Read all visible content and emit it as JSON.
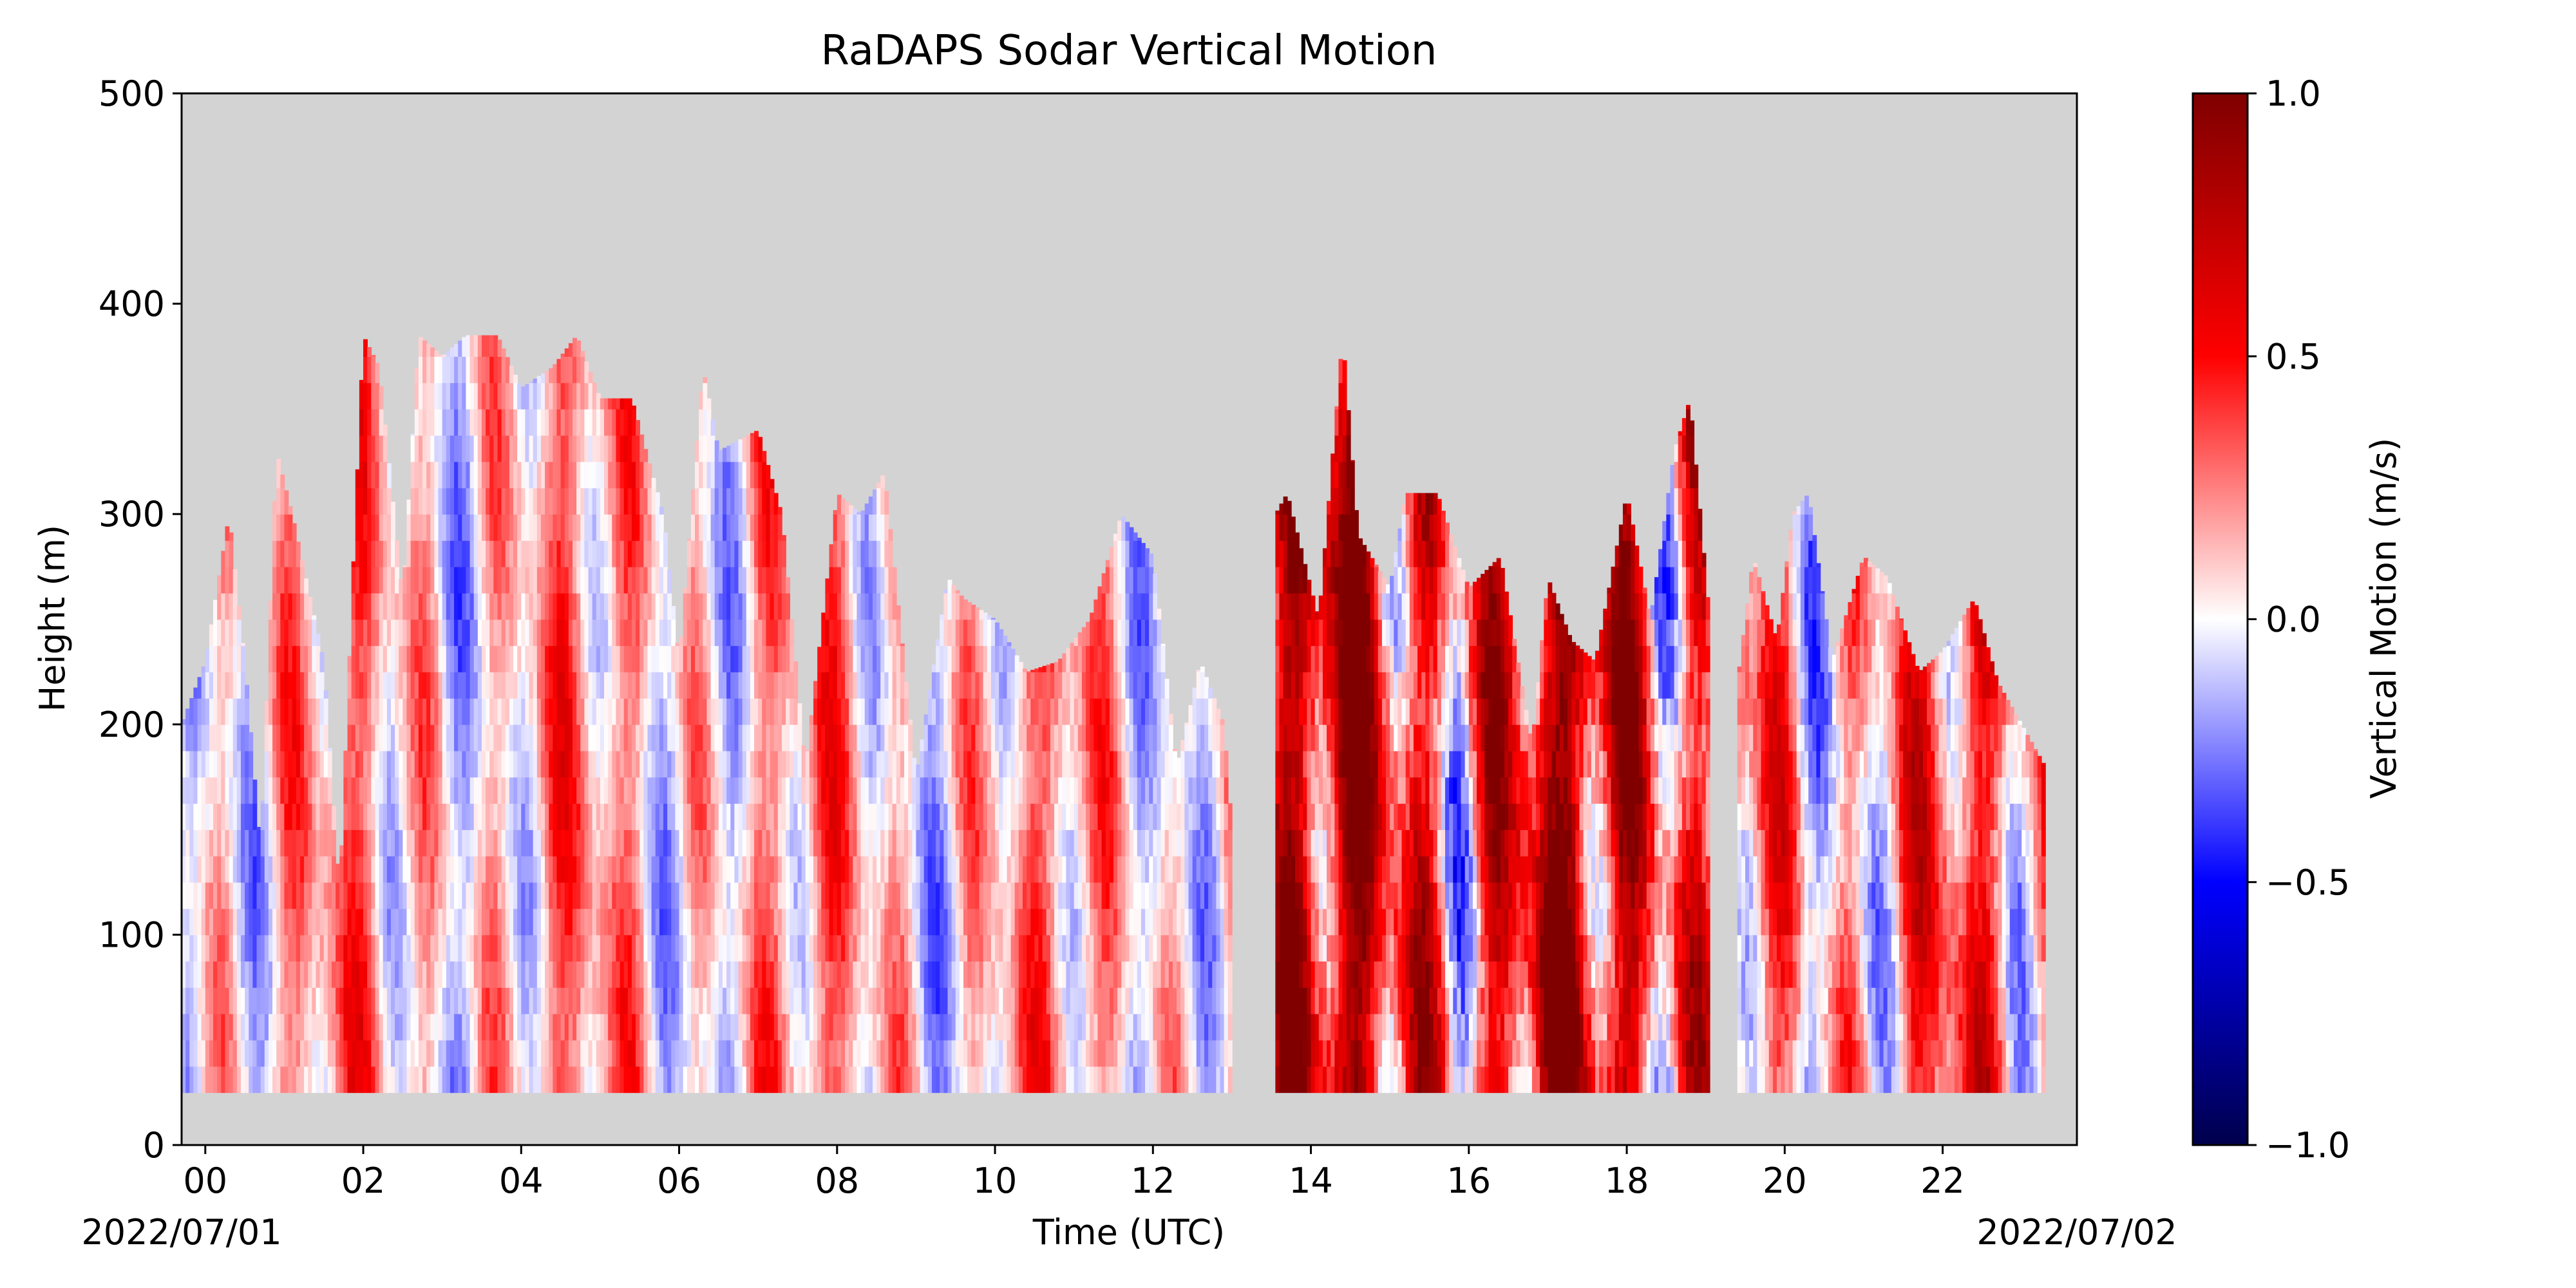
{
  "chart_data": {
    "type": "heatmap",
    "title": "RaDAPS Sodar Vertical Motion",
    "xlabel": "Time (UTC)",
    "ylabel": "Height (m)",
    "date_start": "2022/07/01",
    "date_end": "2022/07/02",
    "x_unit": "hour UTC",
    "xlim": [
      -0.3,
      23.7
    ],
    "ylim": [
      0,
      500
    ],
    "x_ticks": [
      "00",
      "02",
      "04",
      "06",
      "08",
      "10",
      "12",
      "14",
      "16",
      "18",
      "20",
      "22"
    ],
    "x_tick_values": [
      0,
      2,
      4,
      6,
      8,
      10,
      12,
      14,
      16,
      18,
      20,
      22
    ],
    "y_ticks": [
      "0",
      "100",
      "200",
      "300",
      "400",
      "500"
    ],
    "y_tick_values": [
      0,
      100,
      200,
      300,
      400,
      500
    ],
    "background": "#d3d3d3",
    "colormap": "seismic",
    "colorbar": {
      "label": "Vertical Motion (m/s)",
      "range": [
        -1.0,
        1.0
      ],
      "ticks": [
        "−1.0",
        "−0.5",
        "0.0",
        "0.5",
        "1.0"
      ],
      "tick_values": [
        -1.0,
        -0.5,
        0.0,
        0.5,
        1.0
      ]
    },
    "z_unit": "m/s",
    "data_min_height": 25,
    "segments": [
      {
        "start": -0.3,
        "end": 13.0,
        "amplitude": 0.45,
        "bias": 0.12
      },
      {
        "start": 13.55,
        "end": 19.05,
        "amplitude": 0.85,
        "bias": 0.5
      },
      {
        "start": 19.4,
        "end": 23.3,
        "amplitude": 0.6,
        "bias": 0.22
      }
    ],
    "top_height_profile": [
      [
        -0.3,
        200
      ],
      [
        0.0,
        230
      ],
      [
        0.3,
        300
      ],
      [
        0.5,
        230
      ],
      [
        0.7,
        140
      ],
      [
        0.9,
        330
      ],
      [
        1.1,
        300
      ],
      [
        1.5,
        230
      ],
      [
        1.7,
        120
      ],
      [
        1.9,
        300
      ],
      [
        2.0,
        385
      ],
      [
        2.2,
        370
      ],
      [
        2.5,
        260
      ],
      [
        2.7,
        385
      ],
      [
        3.0,
        375
      ],
      [
        3.3,
        385
      ],
      [
        3.7,
        385
      ],
      [
        4.0,
        360
      ],
      [
        4.4,
        370
      ],
      [
        4.7,
        385
      ],
      [
        5.0,
        355
      ],
      [
        5.4,
        355
      ],
      [
        5.8,
        300
      ],
      [
        6.0,
        230
      ],
      [
        6.3,
        370
      ],
      [
        6.5,
        330
      ],
      [
        7.0,
        340
      ],
      [
        7.3,
        300
      ],
      [
        7.6,
        180
      ],
      [
        8.0,
        310
      ],
      [
        8.3,
        300
      ],
      [
        8.6,
        320
      ],
      [
        9.0,
        175
      ],
      [
        9.4,
        270
      ],
      [
        9.6,
        260
      ],
      [
        10.0,
        250
      ],
      [
        10.4,
        225
      ],
      [
        10.8,
        230
      ],
      [
        11.2,
        250
      ],
      [
        11.6,
        300
      ],
      [
        12.0,
        280
      ],
      [
        12.3,
        180
      ],
      [
        12.6,
        230
      ],
      [
        12.9,
        200
      ],
      [
        13.0,
        150
      ],
      [
        13.55,
        300
      ],
      [
        13.7,
        310
      ],
      [
        14.1,
        250
      ],
      [
        14.4,
        385
      ],
      [
        14.6,
        290
      ],
      [
        15.0,
        265
      ],
      [
        15.2,
        310
      ],
      [
        15.6,
        310
      ],
      [
        16.0,
        265
      ],
      [
        16.4,
        280
      ],
      [
        16.8,
        190
      ],
      [
        17.0,
        270
      ],
      [
        17.3,
        240
      ],
      [
        17.6,
        230
      ],
      [
        18.0,
        310
      ],
      [
        18.3,
        250
      ],
      [
        18.6,
        330
      ],
      [
        18.8,
        355
      ],
      [
        19.05,
        250
      ],
      [
        19.4,
        220
      ],
      [
        19.6,
        280
      ],
      [
        19.9,
        240
      ],
      [
        20.1,
        300
      ],
      [
        20.3,
        310
      ],
      [
        20.6,
        230
      ],
      [
        21.0,
        280
      ],
      [
        21.3,
        270
      ],
      [
        21.7,
        225
      ],
      [
        22.0,
        235
      ],
      [
        22.4,
        260
      ],
      [
        22.7,
        220
      ],
      [
        23.0,
        200
      ],
      [
        23.3,
        180
      ]
    ],
    "notes_on_content": "Vertical motion values range roughly -0.6 to +1.0 m/s; strongest updrafts (dark red, ~1.0 m/s) between 14 and 19 UTC; weaker mixed red/blue before 13 UTC and after 19.4 UTC; no data between ~13.0-13.55 UTC and ~19.05-19.4 UTC."
  }
}
